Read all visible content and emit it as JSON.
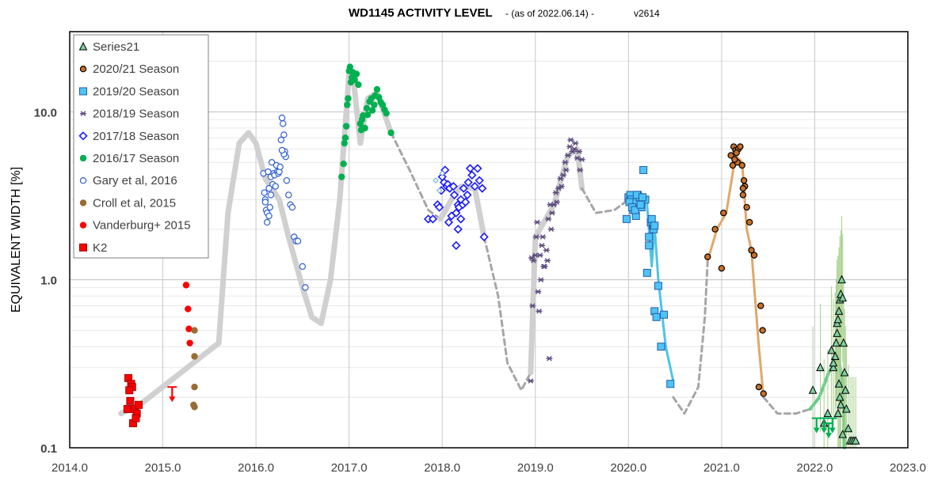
{
  "chart_data": {
    "type": "scatter",
    "title": "WD1145 ACTIVITY LEVEL",
    "subtitle": " - (as of 2022.06.14) - ",
    "version": "v2614",
    "ylabel": "EQUIVALENT WIDTH [%]",
    "xlabel": "",
    "xlim": [
      2014.0,
      2023.0
    ],
    "ylim": [
      0.1,
      30
    ],
    "yscale": "log",
    "x_ticks": [
      "2014.0",
      "2015.0",
      "2016.0",
      "2017.0",
      "2018.0",
      "2019.0",
      "2020.0",
      "2021.0",
      "2022.0",
      "2023.0"
    ],
    "y_ticks": [
      "0.1",
      "1.0",
      "10.0"
    ],
    "grid": true,
    "legend_position": "top-left",
    "legend": [
      {
        "name": "Series21",
        "marker": "triangle",
        "color": "#7fcf9c",
        "stroke": "#000000"
      },
      {
        "name": "2020/21 Season",
        "marker": "circle",
        "color": "#c8702a",
        "stroke": "#000000"
      },
      {
        "name": "2019/20 Season",
        "marker": "square",
        "color": "#4fc3f7",
        "stroke": "#1f5fa8"
      },
      {
        "name": "2018/19 Season",
        "marker": "star",
        "color": "#5e4b7e",
        "stroke": "#5e4b7e"
      },
      {
        "name": "2017/18 Season",
        "marker": "diamond",
        "color": "#ffffff",
        "stroke": "#1a1aff"
      },
      {
        "name": "2016/17 Season",
        "marker": "circle",
        "color": "#00b050",
        "stroke": "#00b050"
      },
      {
        "name": "Gary et al, 2016",
        "marker": "circle",
        "color": "#ffffff",
        "stroke": "#2f5fd0"
      },
      {
        "name": "Croll et al, 2015",
        "marker": "circle",
        "color": "#9a6b32",
        "stroke": "#9a6b32"
      },
      {
        "name": "Vanderburg+ 2015",
        "marker": "circle",
        "color": "#ff0000",
        "stroke": "#ff0000"
      },
      {
        "name": "K2",
        "marker": "square",
        "color": "#ff0000",
        "stroke": "#a00000"
      }
    ],
    "trend_lines": [
      {
        "name": "main-trend-gray",
        "color": "#d0d0d0",
        "width": 7,
        "dash": "",
        "points": [
          [
            2014.55,
            0.16
          ],
          [
            2014.75,
            0.18
          ],
          [
            2015.6,
            0.42
          ],
          [
            2015.7,
            2.5
          ],
          [
            2015.82,
            6.5
          ],
          [
            2015.92,
            7.5
          ],
          [
            2016.0,
            6.5
          ],
          [
            2016.1,
            4.0
          ],
          [
            2016.25,
            3.0
          ],
          [
            2016.35,
            1.8
          ],
          [
            2016.5,
            0.9
          ],
          [
            2016.6,
            0.6
          ],
          [
            2016.7,
            0.55
          ],
          [
            2016.8,
            1.0
          ],
          [
            2016.9,
            3.0
          ],
          [
            2017.0,
            17.0
          ],
          [
            2017.05,
            15.0
          ],
          [
            2017.12,
            6.5
          ],
          [
            2017.2,
            12.0
          ],
          [
            2017.3,
            13.0
          ],
          [
            2017.45,
            7.5
          ]
        ]
      },
      {
        "name": "trend-dash-2017",
        "color": "#a6a6a6",
        "width": 3,
        "dash": "7,5",
        "points": [
          [
            2017.45,
            7.5
          ],
          [
            2017.65,
            4.5
          ],
          [
            2017.85,
            2.6
          ],
          [
            2017.98,
            2.3
          ]
        ]
      },
      {
        "name": "trend-2018",
        "color": "#d0d0d0",
        "width": 7,
        "dash": "",
        "points": [
          [
            2017.98,
            2.3
          ],
          [
            2018.1,
            3.0
          ],
          [
            2018.2,
            3.6
          ],
          [
            2018.35,
            3.5
          ],
          [
            2018.45,
            1.8
          ]
        ]
      },
      {
        "name": "trend-dash-2018",
        "color": "#a6a6a6",
        "width": 3,
        "dash": "7,5",
        "points": [
          [
            2018.45,
            1.8
          ],
          [
            2018.6,
            0.8
          ],
          [
            2018.7,
            0.32
          ],
          [
            2018.85,
            0.22
          ],
          [
            2018.95,
            0.28
          ]
        ]
      },
      {
        "name": "trend-2019",
        "color": "#d0d0d0",
        "width": 7,
        "dash": "",
        "points": [
          [
            2018.95,
            0.28
          ],
          [
            2019.0,
            1.8
          ],
          [
            2019.2,
            2.8
          ],
          [
            2019.35,
            5.5
          ],
          [
            2019.45,
            6.0
          ],
          [
            2019.5,
            3.5
          ]
        ]
      },
      {
        "name": "trend-dash-2019",
        "color": "#a6a6a6",
        "width": 3,
        "dash": "7,5",
        "points": [
          [
            2019.5,
            3.5
          ],
          [
            2019.65,
            2.5
          ],
          [
            2019.85,
            2.6
          ],
          [
            2020.0,
            3.0
          ]
        ]
      },
      {
        "name": "trend-2020",
        "color": "#4fc3e8",
        "width": 3,
        "dash": "",
        "points": [
          [
            2020.2,
            2.8
          ],
          [
            2020.25,
            1.2
          ],
          [
            2020.28,
            2.1
          ],
          [
            2020.32,
            1.0
          ],
          [
            2020.4,
            0.4
          ],
          [
            2020.48,
            0.25
          ]
        ]
      },
      {
        "name": "trend-dash-2020",
        "color": "#a6a6a6",
        "width": 3,
        "dash": "7,5",
        "points": [
          [
            2020.48,
            0.2
          ],
          [
            2020.6,
            0.16
          ],
          [
            2020.75,
            0.23
          ],
          [
            2020.82,
            0.6
          ],
          [
            2020.85,
            1.3
          ]
        ]
      },
      {
        "name": "trend-2021",
        "color": "#e0a86a",
        "width": 3,
        "dash": "",
        "points": [
          [
            2020.85,
            1.3
          ],
          [
            2020.95,
            2.0
          ],
          [
            2021.05,
            2.5
          ],
          [
            2021.15,
            5.5
          ],
          [
            2021.22,
            5.0
          ],
          [
            2021.27,
            2.0
          ],
          [
            2021.32,
            1.5
          ],
          [
            2021.4,
            0.4
          ],
          [
            2021.45,
            0.2
          ]
        ]
      },
      {
        "name": "trend-dash-2021",
        "color": "#a6a6a6",
        "width": 3,
        "dash": "7,5",
        "points": [
          [
            2021.45,
            0.2
          ],
          [
            2021.6,
            0.16
          ],
          [
            2021.8,
            0.16
          ],
          [
            2021.95,
            0.17
          ]
        ]
      },
      {
        "name": "trend-2022",
        "color": "#66cc88",
        "width": 4,
        "dash": "",
        "points": [
          [
            2021.95,
            0.17
          ],
          [
            2022.05,
            0.2
          ],
          [
            2022.15,
            0.28
          ],
          [
            2022.25,
            0.35
          ],
          [
            2022.3,
            0.25
          ],
          [
            2022.32,
            0.1
          ]
        ]
      }
    ],
    "series": [
      {
        "name": "K2",
        "marker": "square",
        "color": "#ff0000",
        "stroke": "#a00000",
        "x": [
          2014.63,
          2014.66,
          2014.67,
          2014.64,
          2014.65,
          2014.7,
          2014.72,
          2014.62,
          2014.74,
          2014.68,
          2014.71
        ],
        "y": [
          0.26,
          0.24,
          0.23,
          0.22,
          0.19,
          0.17,
          0.16,
          0.17,
          0.18,
          0.14,
          0.15
        ]
      },
      {
        "name": "Vanderburg+ 2015",
        "marker": "circle",
        "color": "#ff0000",
        "stroke": "#ff0000",
        "x": [
          2015.25,
          2015.27,
          2015.28,
          2015.29
        ],
        "y": [
          0.93,
          0.67,
          0.51,
          0.42
        ]
      },
      {
        "name": "Croll et al, 2015",
        "marker": "circle",
        "color": "#9a6b32",
        "stroke": "#9a6b32",
        "x": [
          2015.34,
          2015.34,
          2015.34,
          2015.33,
          2015.34
        ],
        "y": [
          0.5,
          0.35,
          0.23,
          0.18,
          0.175
        ]
      },
      {
        "name": "Gary et al, 2016",
        "marker": "circle",
        "color": "#ffffff",
        "stroke": "#2f5fd0",
        "x": [
          2016.08,
          2016.09,
          2016.1,
          2016.11,
          2016.12,
          2016.13,
          2016.14,
          2016.15,
          2016.16,
          2016.17,
          2016.18,
          2016.19,
          2016.2,
          2016.21,
          2016.22,
          2016.23,
          2016.24,
          2016.25,
          2016.26,
          2016.27,
          2016.28,
          2016.29,
          2016.3,
          2016.31,
          2016.32,
          2016.33,
          2016.35,
          2016.37,
          2016.39,
          2016.41,
          2016.43,
          2016.45,
          2016.5,
          2016.53,
          2016.1,
          2016.12,
          2016.14,
          2016.16,
          2016.3,
          2016.28
        ],
        "y": [
          4.3,
          3.3,
          3.0,
          2.6,
          2.2,
          4.4,
          3.5,
          2.7,
          4.1,
          5.0,
          3.7,
          4.3,
          4.2,
          3.6,
          4.8,
          4.4,
          4.3,
          4.4,
          4.7,
          6.8,
          9.2,
          8.5,
          7.3,
          5.8,
          5.4,
          3.9,
          3.2,
          2.8,
          2.7,
          1.8,
          1.7,
          1.7,
          1.2,
          0.9,
          2.9,
          2.5,
          2.4,
          3.2,
          5.6,
          5.9
        ]
      },
      {
        "name": "2016/17 Season",
        "marker": "circle",
        "color": "#00b050",
        "stroke": "#00b050",
        "x": [
          2016.92,
          2016.94,
          2016.95,
          2016.97,
          2016.98,
          2017.0,
          2017.01,
          2017.02,
          2017.03,
          2017.04,
          2017.05,
          2017.06,
          2017.08,
          2017.1,
          2017.12,
          2017.13,
          2017.15,
          2017.17,
          2017.19,
          2017.2,
          2017.22,
          2017.24,
          2017.25,
          2017.27,
          2017.28,
          2017.3,
          2017.32,
          2017.34,
          2017.36,
          2017.38,
          2017.4,
          2017.45,
          2016.96,
          2016.99,
          2017.14
        ],
        "y": [
          4.1,
          4.9,
          6.5,
          8.2,
          11.0,
          17.5,
          18.5,
          15.0,
          16.0,
          17.2,
          16.5,
          15.5,
          16.8,
          14.5,
          8.5,
          7.8,
          9.5,
          8.0,
          10.5,
          9.6,
          11.5,
          12.0,
          10.2,
          11.0,
          12.5,
          13.6,
          12.2,
          11.4,
          11.0,
          10.3,
          9.8,
          7.5,
          7.0,
          12.0,
          9.0
        ]
      },
      {
        "name": "2017/18 Season",
        "marker": "diamond",
        "color": "#ffffff",
        "stroke": "#1a1aff",
        "x": [
          2017.85,
          2017.9,
          2017.95,
          2017.97,
          2018.0,
          2018.02,
          2018.03,
          2018.05,
          2018.06,
          2018.08,
          2018.1,
          2018.12,
          2018.13,
          2018.15,
          2018.17,
          2018.18,
          2018.2,
          2018.22,
          2018.23,
          2018.25,
          2018.27,
          2018.28,
          2018.3,
          2018.32,
          2018.35,
          2018.38,
          2018.4,
          2018.43,
          2018.45,
          2018.15,
          2018.17,
          2018.2,
          2018.07,
          2017.99
        ],
        "y": [
          2.3,
          2.3,
          2.8,
          2.7,
          4.1,
          3.8,
          4.5,
          3.6,
          3.7,
          3.5,
          2.4,
          3.6,
          3.2,
          2.5,
          2.8,
          2.7,
          3.0,
          2.8,
          3.5,
          2.9,
          3.2,
          3.8,
          4.6,
          4.2,
          3.6,
          4.6,
          3.9,
          3.5,
          1.8,
          1.6,
          2.0,
          2.3,
          2.2,
          3.4
        ]
      },
      {
        "name": "2017/18 Season (light)",
        "marker": "diamond-small",
        "color": "#ffffff",
        "stroke": "#6fa8dc",
        "x": [
          2017.93,
          2017.97,
          2018.0
        ],
        "y": [
          3.9,
          3.4,
          4.3
        ]
      },
      {
        "name": "2018/19 Season",
        "marker": "star",
        "color": "#5e4b7e",
        "stroke": "#5e4b7e",
        "x": [
          2018.97,
          2018.98,
          2019.0,
          2019.02,
          2019.03,
          2019.05,
          2019.07,
          2019.08,
          2019.1,
          2019.12,
          2019.13,
          2019.15,
          2019.17,
          2019.18,
          2019.2,
          2019.22,
          2019.23,
          2019.25,
          2019.27,
          2019.28,
          2019.3,
          2019.32,
          2019.33,
          2019.35,
          2019.37,
          2019.38,
          2019.4,
          2019.42,
          2019.43,
          2019.45,
          2019.47,
          2019.48,
          2019.5,
          2018.95,
          2018.96,
          2019.01,
          2019.04,
          2019.06,
          2019.09,
          2019.14,
          2019.16
        ],
        "y": [
          0.7,
          1.3,
          1.4,
          2.2,
          0.85,
          1.4,
          1.6,
          1.8,
          1.2,
          1.5,
          1.3,
          0.34,
          2.0,
          2.5,
          2.8,
          3.3,
          2.9,
          3.5,
          4.0,
          3.6,
          4.2,
          5.0,
          4.5,
          5.5,
          6.2,
          6.8,
          5.8,
          6.0,
          6.5,
          5.3,
          5.8,
          4.5,
          5.2,
          0.25,
          1.35,
          1.8,
          0.65,
          1.0,
          1.2,
          2.3,
          2.8
        ]
      },
      {
        "name": "2019/20 Season",
        "marker": "square",
        "color": "#4fc3f7",
        "stroke": "#1f5fa8",
        "x": [
          2019.98,
          2020.0,
          2020.02,
          2020.03,
          2020.05,
          2020.06,
          2020.08,
          2020.1,
          2020.12,
          2020.14,
          2020.16,
          2020.18,
          2020.2,
          2020.22,
          2020.24,
          2020.26,
          2020.27,
          2020.28,
          2020.3,
          2020.32,
          2020.35,
          2020.38,
          2020.45,
          2020.01,
          2020.04,
          2020.07,
          2020.09,
          2020.13,
          2020.15,
          2020.25,
          2020.28,
          2020.22
        ],
        "y": [
          2.3,
          3.1,
          3.2,
          3.0,
          2.6,
          2.9,
          2.4,
          3.2,
          3.1,
          2.7,
          4.5,
          3.0,
          1.1,
          1.8,
          2.2,
          2.1,
          2.0,
          0.65,
          0.6,
          0.92,
          0.4,
          0.62,
          0.24,
          2.9,
          2.7,
          2.6,
          3.2,
          2.8,
          3.1,
          2.3,
          2.1,
          1.6
        ]
      },
      {
        "name": "2020/21 Season",
        "marker": "circle",
        "color": "#c8702a",
        "stroke": "#000000",
        "x": [
          2020.85,
          2020.93,
          2021.0,
          2021.02,
          2021.1,
          2021.12,
          2021.13,
          2021.15,
          2021.17,
          2021.18,
          2021.2,
          2021.22,
          2021.24,
          2021.25,
          2021.27,
          2021.3,
          2021.32,
          2021.35,
          2021.4,
          2021.42,
          2021.44,
          2021.45,
          2021.14,
          2021.16,
          2021.23,
          2021.23
        ],
        "y": [
          1.37,
          2.0,
          1.17,
          2.5,
          5.5,
          4.8,
          6.2,
          5.9,
          5.0,
          6.0,
          6.2,
          4.8,
          3.9,
          3.6,
          2.7,
          2.2,
          1.5,
          1.4,
          0.23,
          0.7,
          0.5,
          0.21,
          5.2,
          5.7,
          3.5,
          3.2
        ]
      },
      {
        "name": "Series21",
        "marker": "triangle",
        "color": "#7fcf9c",
        "stroke": "#000000",
        "x": [
          2021.98,
          2022.06,
          2022.1,
          2022.14,
          2022.18,
          2022.2,
          2022.22,
          2022.23,
          2022.24,
          2022.25,
          2022.26,
          2022.27,
          2022.28,
          2022.29,
          2022.3,
          2022.31,
          2022.32,
          2022.33,
          2022.34,
          2022.36,
          2022.38,
          2022.4,
          2022.42,
          2022.44,
          2022.2,
          2022.24,
          2022.26,
          2022.28,
          2022.3,
          2022.27,
          2022.25
        ],
        "y": [
          0.22,
          0.3,
          0.14,
          0.16,
          0.38,
          0.3,
          0.35,
          0.42,
          0.55,
          0.58,
          0.65,
          0.76,
          0.82,
          1.0,
          0.78,
          0.42,
          0.28,
          0.22,
          0.17,
          0.13,
          0.11,
          0.11,
          0.11,
          0.11,
          0.32,
          0.48,
          0.24,
          0.18,
          0.12,
          0.2,
          0.16
        ]
      }
    ],
    "limits": [
      {
        "name": "k2-upper-limit-arrow",
        "x": 2015.1,
        "y": 0.23,
        "color": "#ff0000"
      },
      {
        "name": "s21-limit-1",
        "x": 2022.02,
        "y": 0.15,
        "color": "#00b050"
      },
      {
        "name": "s21-limit-2",
        "x": 2022.1,
        "y": 0.15,
        "color": "#00b050"
      },
      {
        "name": "s21-limit-3",
        "x": 2022.15,
        "y": 0.14,
        "color": "#00b050"
      },
      {
        "name": "s21-limit-4",
        "x": 2022.19,
        "y": 0.15,
        "color": "#00b050"
      }
    ]
  }
}
